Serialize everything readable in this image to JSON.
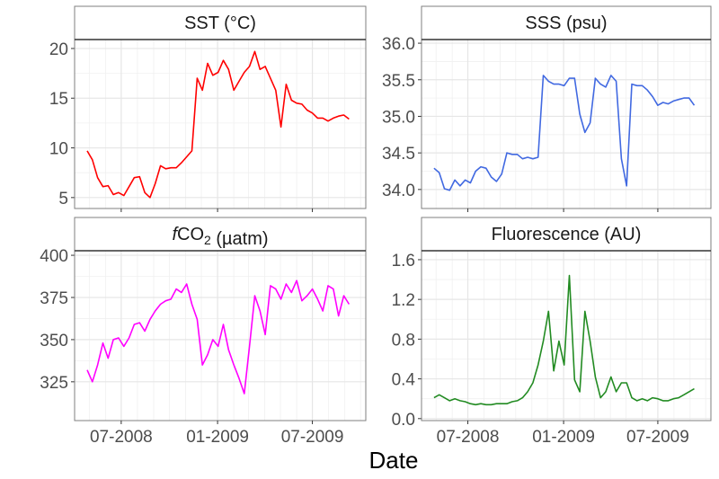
{
  "chart_data": {
    "type": "line",
    "layout": "facet-grid 2x2",
    "xlabel": "Date",
    "xlim": [
      "2008-04-03",
      "2009-10-11"
    ],
    "xticks": [
      {
        "date": "2008-07-01",
        "label": "07-2008"
      },
      {
        "date": "2009-01-01",
        "label": "01-2009"
      },
      {
        "date": "2009-07-01",
        "label": "07-2009"
      }
    ],
    "grid": true,
    "x": [
      "2008-04-27",
      "2008-05-07",
      "2008-05-17",
      "2008-05-27",
      "2008-06-06",
      "2008-06-16",
      "2008-06-26",
      "2008-07-06",
      "2008-07-16",
      "2008-07-26",
      "2008-08-05",
      "2008-08-15",
      "2008-08-25",
      "2008-09-04",
      "2008-09-14",
      "2008-09-24",
      "2008-10-04",
      "2008-10-14",
      "2008-10-24",
      "2008-11-03",
      "2008-11-13",
      "2008-11-23",
      "2008-12-03",
      "2008-12-13",
      "2008-12-23",
      "2009-01-02",
      "2009-01-12",
      "2009-01-22",
      "2009-02-01",
      "2009-02-11",
      "2009-02-21",
      "2009-03-03",
      "2009-03-13",
      "2009-03-23",
      "2009-04-02",
      "2009-04-12",
      "2009-04-22",
      "2009-05-02",
      "2009-05-12",
      "2009-05-22",
      "2009-06-01",
      "2009-06-11",
      "2009-06-21",
      "2009-07-01",
      "2009-07-11",
      "2009-07-21",
      "2009-07-31",
      "2009-08-10",
      "2009-08-20",
      "2009-08-30",
      "2009-09-09"
    ],
    "facets": [
      {
        "title": "SST (°C)",
        "title_parts": [
          {
            "t": "SST (°C)"
          }
        ],
        "color": "#ff0000",
        "ylim": [
          3.9,
          20.9
        ],
        "yticks": [
          {
            "v": 5,
            "label": "5"
          },
          {
            "v": 10,
            "label": "10"
          },
          {
            "v": 15,
            "label": "15"
          },
          {
            "v": 20,
            "label": "20"
          }
        ],
        "values": [
          9.7,
          8.8,
          7.0,
          6.1,
          6.2,
          5.3,
          5.5,
          5.2,
          6.1,
          7.0,
          7.1,
          5.5,
          5.0,
          6.4,
          8.2,
          7.9,
          8.0,
          8.0,
          8.5,
          9.1,
          9.7,
          17.0,
          15.8,
          18.5,
          17.3,
          17.6,
          18.8,
          17.9,
          15.8,
          16.7,
          17.6,
          18.2,
          19.7,
          17.9,
          18.2,
          17.0,
          15.8,
          12.1,
          16.4,
          14.8,
          14.5,
          14.4,
          13.8,
          13.5,
          13.0,
          13.0,
          12.7,
          13.0,
          13.2,
          13.3,
          12.9
        ]
      },
      {
        "title": "SSS (psu)",
        "title_parts": [
          {
            "t": "SSS (psu)"
          }
        ],
        "color": "#4169e1",
        "ylim": [
          33.74,
          36.05
        ],
        "yticks": [
          {
            "v": 34.0,
            "label": "34.0"
          },
          {
            "v": 34.5,
            "label": "34.5"
          },
          {
            "v": 35.0,
            "label": "35.0"
          },
          {
            "v": 35.5,
            "label": "35.5"
          },
          {
            "v": 36.0,
            "label": "36.0"
          }
        ],
        "values": [
          34.29,
          34.23,
          34.01,
          33.99,
          34.13,
          34.05,
          34.13,
          34.09,
          34.25,
          34.31,
          34.29,
          34.17,
          34.11,
          34.21,
          34.5,
          34.48,
          34.48,
          34.42,
          34.44,
          34.42,
          34.44,
          35.56,
          35.48,
          35.44,
          35.44,
          35.42,
          35.52,
          35.52,
          35.03,
          34.78,
          34.91,
          35.52,
          35.44,
          35.4,
          35.56,
          35.48,
          34.42,
          34.05,
          35.44,
          35.42,
          35.42,
          35.36,
          35.27,
          35.15,
          35.19,
          35.17,
          35.21,
          35.23,
          35.25,
          35.25,
          35.15
        ]
      },
      {
        "title": "fCO2 (µatm)",
        "title_parts": [
          {
            "t": "f",
            "style": "italic"
          },
          {
            "t": "CO"
          },
          {
            "t": "2",
            "style": "sub"
          },
          {
            "t": " (µatm)"
          }
        ],
        "color": "#ff00ff",
        "ylim": [
          302,
          402.7
        ],
        "yticks": [
          {
            "v": 325,
            "label": "325"
          },
          {
            "v": 350,
            "label": "350"
          },
          {
            "v": 375,
            "label": "375"
          },
          {
            "v": 400,
            "label": "400"
          }
        ],
        "values": [
          332,
          325,
          335,
          348,
          339,
          350,
          351,
          346,
          351,
          359,
          360,
          355,
          362,
          367,
          371,
          373,
          374,
          380,
          378,
          383,
          371,
          362,
          335,
          341,
          350,
          346,
          359,
          344,
          335,
          327,
          318,
          346,
          376,
          367,
          353,
          382,
          380,
          374,
          383,
          378,
          385,
          373,
          376,
          380,
          374,
          367,
          382,
          380,
          364,
          376,
          371
        ]
      },
      {
        "title": "Fluorescence (AU)",
        "title_parts": [
          {
            "t": "Fluorescence (AU)"
          }
        ],
        "color": "#228b22",
        "ylim": [
          -0.02,
          1.69
        ],
        "yticks": [
          {
            "v": 0.0,
            "label": "0.0"
          },
          {
            "v": 0.4,
            "label": "0.4"
          },
          {
            "v": 0.8,
            "label": "0.8"
          },
          {
            "v": 1.2,
            "label": "1.2"
          },
          {
            "v": 1.6,
            "label": "1.6"
          }
        ],
        "values": [
          0.21,
          0.24,
          0.21,
          0.18,
          0.2,
          0.18,
          0.17,
          0.15,
          0.14,
          0.15,
          0.14,
          0.14,
          0.15,
          0.15,
          0.15,
          0.17,
          0.18,
          0.21,
          0.27,
          0.36,
          0.54,
          0.78,
          1.08,
          0.48,
          0.78,
          0.54,
          1.44,
          0.39,
          0.27,
          1.08,
          0.78,
          0.42,
          0.21,
          0.27,
          0.42,
          0.27,
          0.36,
          0.36,
          0.21,
          0.18,
          0.2,
          0.18,
          0.21,
          0.2,
          0.18,
          0.18,
          0.2,
          0.21,
          0.24,
          0.27,
          0.3
        ]
      }
    ]
  }
}
